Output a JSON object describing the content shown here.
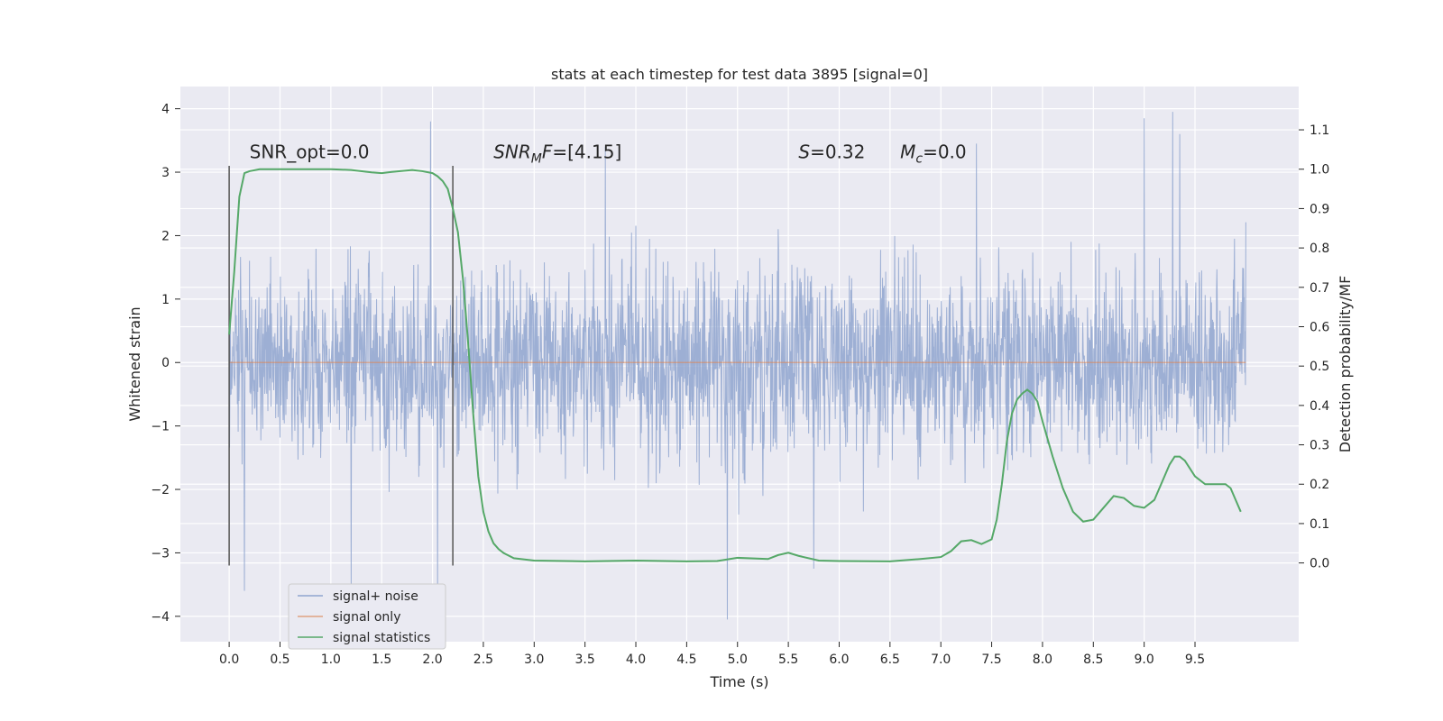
{
  "chart_data": {
    "type": "line",
    "title": "stats at each timestep for test data 3895 [signal=0]",
    "xlabel": "Time (s)",
    "ylabel_left": "Whitened strain",
    "ylabel_right": "Detection probability/MF",
    "xlim": [
      -0.48,
      10.52
    ],
    "ylim_left": [
      -4.4,
      4.35
    ],
    "ylim_right": [
      -0.2,
      1.21
    ],
    "x_ticks": [
      "0.0",
      "0.5",
      "1.0",
      "1.5",
      "2.0",
      "2.5",
      "3.0",
      "3.5",
      "4.0",
      "4.5",
      "5.0",
      "5.5",
      "6.0",
      "6.5",
      "7.0",
      "7.5",
      "8.0",
      "8.5",
      "9.0",
      "9.5"
    ],
    "y_ticks_left": [
      "4",
      "3",
      "2",
      "1",
      "0",
      "−1",
      "−2",
      "−3",
      "−4"
    ],
    "y_ticks_right": [
      "1.1",
      "1.0",
      "0.9",
      "0.8",
      "0.7",
      "0.6",
      "0.5",
      "0.4",
      "0.3",
      "0.2",
      "0.1",
      "0.0"
    ],
    "grid": true,
    "legend_position": "lower-left",
    "background": "#eaeaf2",
    "series": [
      {
        "name": "signal+ noise",
        "color": "#8fa5cf",
        "x_range": [
          0.0,
          10.0
        ],
        "noise_band": {
          "typical_peak": 2.5,
          "max": 3.95,
          "min": -4.05
        },
        "spikes": [
          {
            "x": 0.15,
            "y": -3.6
          },
          {
            "x": 1.2,
            "y": -3.5
          },
          {
            "x": 1.98,
            "y": 3.8
          },
          {
            "x": 2.05,
            "y": -3.75
          },
          {
            "x": 4.9,
            "y": -4.05
          },
          {
            "x": 5.75,
            "y": -3.25
          },
          {
            "x": 9.0,
            "y": 3.85
          },
          {
            "x": 9.28,
            "y": 3.95
          },
          {
            "x": 9.35,
            "y": 3.6
          },
          {
            "x": 7.35,
            "y": 3.45
          },
          {
            "x": 3.7,
            "y": 3.4
          }
        ]
      },
      {
        "name": "signal only",
        "color": "#dd8452",
        "x": [
          0.0,
          10.0
        ],
        "y": [
          0.0,
          0.0
        ]
      },
      {
        "name": "signal statistics",
        "color": "#55a868",
        "axis": "right",
        "x": [
          0.0,
          0.05,
          0.1,
          0.15,
          0.2,
          0.3,
          0.5,
          0.8,
          1.0,
          1.2,
          1.4,
          1.5,
          1.6,
          1.8,
          1.9,
          2.0,
          2.05,
          2.1,
          2.15,
          2.2,
          2.25,
          2.3,
          2.35,
          2.4,
          2.45,
          2.5,
          2.55,
          2.6,
          2.65,
          2.7,
          2.8,
          3.0,
          3.5,
          4.0,
          4.5,
          4.8,
          5.0,
          5.3,
          5.4,
          5.5,
          5.6,
          5.8,
          6.0,
          6.5,
          6.8,
          7.0,
          7.1,
          7.2,
          7.3,
          7.4,
          7.5,
          7.55,
          7.6,
          7.65,
          7.7,
          7.75,
          7.8,
          7.85,
          7.9,
          7.95,
          8.0,
          8.1,
          8.2,
          8.3,
          8.4,
          8.5,
          8.6,
          8.7,
          8.8,
          8.9,
          9.0,
          9.1,
          9.2,
          9.25,
          9.3,
          9.35,
          9.4,
          9.5,
          9.6,
          9.7,
          9.8,
          9.85,
          9.9,
          9.95
        ],
        "y": [
          0.58,
          0.74,
          0.93,
          0.99,
          0.995,
          1.0,
          1.0,
          1.0,
          1.0,
          0.998,
          0.992,
          0.99,
          0.993,
          0.998,
          0.995,
          0.99,
          0.982,
          0.97,
          0.95,
          0.9,
          0.84,
          0.72,
          0.56,
          0.38,
          0.22,
          0.13,
          0.08,
          0.05,
          0.035,
          0.025,
          0.012,
          0.006,
          0.004,
          0.006,
          0.004,
          0.005,
          0.013,
          0.01,
          0.02,
          0.026,
          0.018,
          0.006,
          0.005,
          0.004,
          0.01,
          0.015,
          0.03,
          0.055,
          0.058,
          0.048,
          0.06,
          0.11,
          0.2,
          0.31,
          0.38,
          0.415,
          0.43,
          0.44,
          0.43,
          0.41,
          0.36,
          0.27,
          0.19,
          0.13,
          0.105,
          0.11,
          0.14,
          0.17,
          0.165,
          0.145,
          0.14,
          0.16,
          0.22,
          0.25,
          0.27,
          0.27,
          0.26,
          0.22,
          0.2,
          0.2,
          0.2,
          0.19,
          0.16,
          0.13
        ]
      }
    ],
    "vlines": [
      {
        "x": 0.0,
        "y0": -3.2,
        "y1": 3.1
      },
      {
        "x": 2.2,
        "y0": -3.2,
        "y1": 3.1
      }
    ],
    "annotations": [
      {
        "id": "snr-opt",
        "x": 0.2,
        "y": 3.22,
        "parts": [
          {
            "t": "SNR_opt=0.0",
            "style": "normal"
          }
        ]
      },
      {
        "id": "snr-mf",
        "x": 2.6,
        "y": 3.22,
        "parts": [
          {
            "t": "SNR",
            "style": "italic"
          },
          {
            "t": "MF",
            "style": "italic-sub-M"
          },
          {
            "t": "=[4.15]",
            "style": "normal"
          }
        ]
      },
      {
        "id": "s-val",
        "x": 5.6,
        "y": 3.22,
        "parts": [
          {
            "t": "S",
            "style": "italic"
          },
          {
            "t": "=0.32",
            "style": "normal"
          }
        ]
      },
      {
        "id": "mc-val",
        "x": 6.6,
        "y": 3.22,
        "parts": [
          {
            "t": "M",
            "style": "italic"
          },
          {
            "t": "c",
            "style": "italic-sub"
          },
          {
            "t": "=0.0",
            "style": "normal"
          }
        ]
      }
    ]
  }
}
